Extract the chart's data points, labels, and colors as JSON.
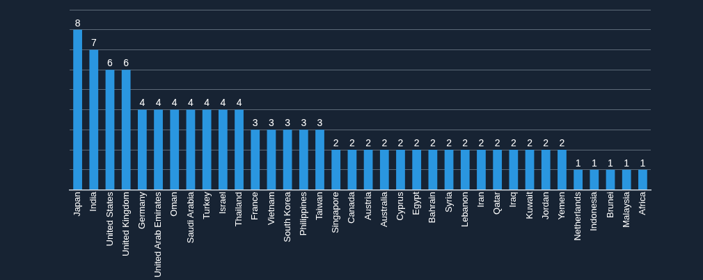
{
  "chart_data": {
    "type": "bar",
    "categories": [
      "Japan",
      "India",
      "United States",
      "United Kingdom",
      "Germany",
      "United Arab Emirates",
      "Oman",
      "Saudi Arabia",
      "Turkey",
      "Israel",
      "Thailand",
      "France",
      "Vietnam",
      "South Korea",
      "Philippines",
      "Taiwan",
      "Singapore",
      "Canada",
      "Austria",
      "Australia",
      "Cyprus",
      "Egypt",
      "Bahrain",
      "Syria",
      "Lebanon",
      "Iran",
      "Qatar",
      "Iraq",
      "Kuwait",
      "Jordan",
      "Yemen",
      "Netherlands",
      "Indonesia",
      "Brunei",
      "Malaysia",
      "Africa"
    ],
    "values": [
      8,
      7,
      6,
      6,
      4,
      4,
      4,
      4,
      4,
      4,
      4,
      3,
      3,
      3,
      3,
      3,
      2,
      2,
      2,
      2,
      2,
      2,
      2,
      2,
      2,
      2,
      2,
      2,
      2,
      2,
      2,
      1,
      1,
      1,
      1,
      1
    ],
    "color": "#2a96e0",
    "ylim": [
      0,
      9
    ],
    "yticks": [
      0,
      1,
      2,
      3,
      4,
      5,
      6,
      7,
      8,
      9
    ],
    "grid": "y",
    "tick_labels": "x",
    "data_labels": true,
    "legend": false
  }
}
